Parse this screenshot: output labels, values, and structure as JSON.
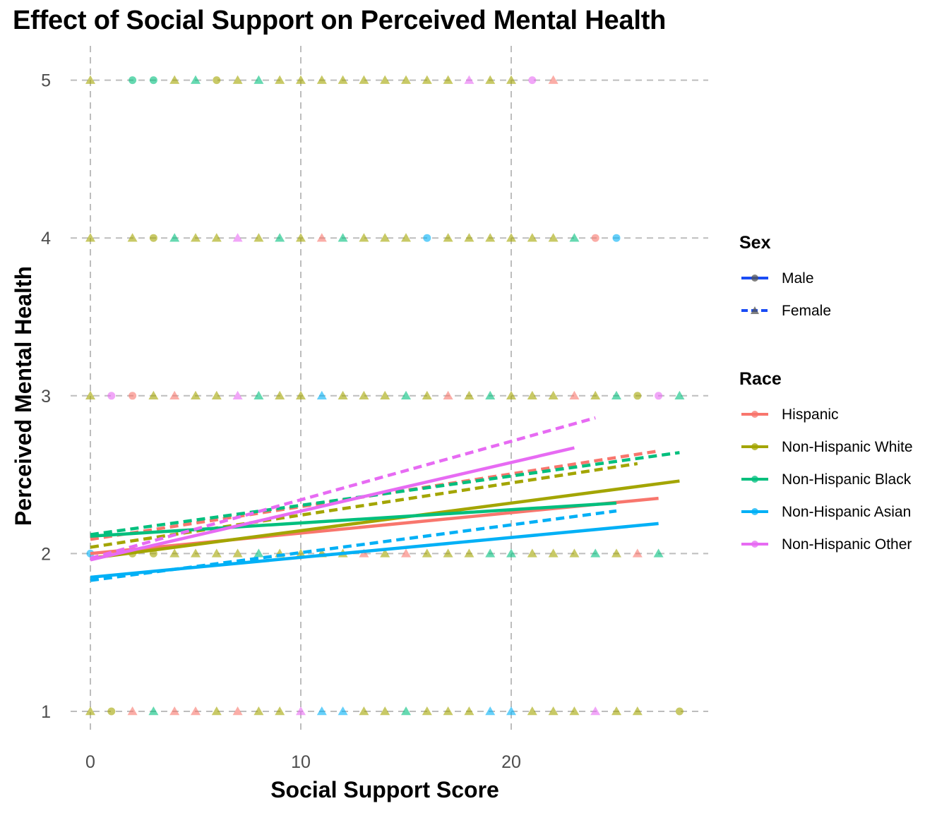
{
  "chart_data": {
    "type": "scatter",
    "title": "Effect of Social Support on Perceived Mental Health",
    "xlabel": "Social Support Score",
    "ylabel": "Perceived Mental Health",
    "xlim": [
      0,
      29
    ],
    "ylim": [
      1,
      5
    ],
    "x_ticks": [
      0,
      10,
      20
    ],
    "y_ticks": [
      1,
      2,
      3,
      4,
      5
    ],
    "grid": "dashed major gridlines",
    "legend_position": "right",
    "legends": {
      "sex": {
        "title": "Sex",
        "entries": [
          {
            "label": "Male",
            "linetype": "solid",
            "shape": "circle"
          },
          {
            "label": "Female",
            "linetype": "dashed",
            "shape": "triangle"
          }
        ]
      },
      "race": {
        "title": "Race",
        "entries": [
          {
            "label": "Hispanic",
            "color": "#F8766D"
          },
          {
            "label": "Non-Hispanic White",
            "color": "#A3A500"
          },
          {
            "label": "Non-Hispanic Black",
            "color": "#00BF7D"
          },
          {
            "label": "Non-Hispanic Asian",
            "color": "#00B0F6"
          },
          {
            "label": "Non-Hispanic Other",
            "color": "#E76BF3"
          }
        ]
      }
    },
    "trend_lines": [
      {
        "race": "Hispanic",
        "sex": "Male",
        "x": [
          0,
          27
        ],
        "y": [
          2.0,
          2.35
        ]
      },
      {
        "race": "Hispanic",
        "sex": "Female",
        "x": [
          0,
          27
        ],
        "y": [
          2.09,
          2.65
        ]
      },
      {
        "race": "Non-Hispanic White",
        "sex": "Male",
        "x": [
          0,
          28
        ],
        "y": [
          1.97,
          2.46
        ]
      },
      {
        "race": "Non-Hispanic White",
        "sex": "Female",
        "x": [
          0,
          26
        ],
        "y": [
          2.04,
          2.57
        ]
      },
      {
        "race": "Non-Hispanic Black",
        "sex": "Male",
        "x": [
          0,
          25
        ],
        "y": [
          2.11,
          2.32
        ]
      },
      {
        "race": "Non-Hispanic Black",
        "sex": "Female",
        "x": [
          0,
          28
        ],
        "y": [
          2.12,
          2.64
        ]
      },
      {
        "race": "Non-Hispanic Asian",
        "sex": "Male",
        "x": [
          0,
          27
        ],
        "y": [
          1.85,
          2.19
        ]
      },
      {
        "race": "Non-Hispanic Asian",
        "sex": "Female",
        "x": [
          0,
          25
        ],
        "y": [
          1.83,
          2.27
        ]
      },
      {
        "race": "Non-Hispanic Other",
        "sex": "Male",
        "x": [
          0,
          23
        ],
        "y": [
          1.96,
          2.67
        ]
      },
      {
        "race": "Non-Hispanic Other",
        "sex": "Female",
        "x": [
          0,
          24
        ],
        "y": [
          1.97,
          2.86
        ]
      }
    ],
    "points": [
      {
        "y": 5,
        "marks": [
          [
            0,
            "t",
            "#A3A500"
          ],
          [
            2,
            "c",
            "#00BF7D"
          ],
          [
            3,
            "c",
            "#00BF7D"
          ],
          [
            4,
            "t",
            "#A3A500"
          ],
          [
            5,
            "t",
            "#00BF7D"
          ],
          [
            6,
            "c",
            "#A3A500"
          ],
          [
            7,
            "t",
            "#A3A500"
          ],
          [
            8,
            "t",
            "#00BF7D"
          ],
          [
            9,
            "t",
            "#A3A500"
          ],
          [
            10,
            "t",
            "#A3A500"
          ],
          [
            11,
            "t",
            "#A3A500"
          ],
          [
            12,
            "t",
            "#A3A500"
          ],
          [
            13,
            "t",
            "#A3A500"
          ],
          [
            14,
            "t",
            "#A3A500"
          ],
          [
            15,
            "t",
            "#A3A500"
          ],
          [
            16,
            "t",
            "#A3A500"
          ],
          [
            17,
            "t",
            "#A3A500"
          ],
          [
            18,
            "t",
            "#E76BF3"
          ],
          [
            19,
            "t",
            "#A3A500"
          ],
          [
            20,
            "t",
            "#A3A500"
          ],
          [
            21,
            "c",
            "#E76BF3"
          ],
          [
            22,
            "t",
            "#F8766D"
          ]
        ]
      },
      {
        "y": 4,
        "marks": [
          [
            0,
            "t",
            "#A3A500"
          ],
          [
            2,
            "t",
            "#A3A500"
          ],
          [
            3,
            "c",
            "#A3A500"
          ],
          [
            4,
            "t",
            "#00BF7D"
          ],
          [
            5,
            "t",
            "#A3A500"
          ],
          [
            6,
            "t",
            "#A3A500"
          ],
          [
            7,
            "t",
            "#E76BF3"
          ],
          [
            8,
            "t",
            "#A3A500"
          ],
          [
            9,
            "t",
            "#00BF7D"
          ],
          [
            10,
            "t",
            "#A3A500"
          ],
          [
            11,
            "t",
            "#F8766D"
          ],
          [
            12,
            "t",
            "#00BF7D"
          ],
          [
            13,
            "t",
            "#A3A500"
          ],
          [
            14,
            "t",
            "#A3A500"
          ],
          [
            15,
            "t",
            "#A3A500"
          ],
          [
            16,
            "c",
            "#00B0F6"
          ],
          [
            17,
            "t",
            "#A3A500"
          ],
          [
            18,
            "t",
            "#A3A500"
          ],
          [
            19,
            "t",
            "#A3A500"
          ],
          [
            20,
            "t",
            "#A3A500"
          ],
          [
            21,
            "t",
            "#A3A500"
          ],
          [
            22,
            "t",
            "#A3A500"
          ],
          [
            23,
            "t",
            "#00BF7D"
          ],
          [
            24,
            "c",
            "#F8766D"
          ],
          [
            25,
            "c",
            "#00B0F6"
          ]
        ]
      },
      {
        "y": 3,
        "marks": [
          [
            0,
            "t",
            "#A3A500"
          ],
          [
            1,
            "c",
            "#E76BF3"
          ],
          [
            2,
            "c",
            "#F8766D"
          ],
          [
            3,
            "t",
            "#A3A500"
          ],
          [
            4,
            "t",
            "#F8766D"
          ],
          [
            5,
            "t",
            "#A3A500"
          ],
          [
            6,
            "t",
            "#A3A500"
          ],
          [
            7,
            "t",
            "#E76BF3"
          ],
          [
            8,
            "t",
            "#00BF7D"
          ],
          [
            9,
            "t",
            "#A3A500"
          ],
          [
            10,
            "t",
            "#A3A500"
          ],
          [
            11,
            "t",
            "#00B0F6"
          ],
          [
            12,
            "t",
            "#A3A500"
          ],
          [
            13,
            "t",
            "#A3A500"
          ],
          [
            14,
            "t",
            "#A3A500"
          ],
          [
            15,
            "t",
            "#00BF7D"
          ],
          [
            16,
            "t",
            "#A3A500"
          ],
          [
            17,
            "t",
            "#F8766D"
          ],
          [
            18,
            "t",
            "#A3A500"
          ],
          [
            19,
            "t",
            "#00BF7D"
          ],
          [
            20,
            "t",
            "#A3A500"
          ],
          [
            21,
            "t",
            "#A3A500"
          ],
          [
            22,
            "t",
            "#A3A500"
          ],
          [
            23,
            "t",
            "#F8766D"
          ],
          [
            24,
            "t",
            "#A3A500"
          ],
          [
            25,
            "t",
            "#00BF7D"
          ],
          [
            26,
            "c",
            "#A3A500"
          ],
          [
            27,
            "c",
            "#E76BF3"
          ],
          [
            28,
            "t",
            "#00BF7D"
          ]
        ]
      },
      {
        "y": 2,
        "marks": [
          [
            0,
            "c",
            "#00B0F6"
          ],
          [
            2,
            "c",
            "#A3A500"
          ],
          [
            3,
            "c",
            "#A3A500"
          ],
          [
            4,
            "t",
            "#A3A500"
          ],
          [
            5,
            "t",
            "#A3A500"
          ],
          [
            6,
            "t",
            "#A3A500"
          ],
          [
            7,
            "t",
            "#A3A500"
          ],
          [
            8,
            "t",
            "#00BF7D"
          ],
          [
            9,
            "t",
            "#A3A500"
          ],
          [
            10,
            "t",
            "#A3A500"
          ],
          [
            11,
            "t",
            "#A3A500"
          ],
          [
            12,
            "t",
            "#A3A500"
          ],
          [
            13,
            "t",
            "#F8766D"
          ],
          [
            14,
            "t",
            "#A3A500"
          ],
          [
            15,
            "t",
            "#F8766D"
          ],
          [
            16,
            "t",
            "#A3A500"
          ],
          [
            17,
            "t",
            "#A3A500"
          ],
          [
            18,
            "t",
            "#A3A500"
          ],
          [
            19,
            "t",
            "#00BF7D"
          ],
          [
            20,
            "t",
            "#00BF7D"
          ],
          [
            21,
            "t",
            "#A3A500"
          ],
          [
            22,
            "t",
            "#A3A500"
          ],
          [
            23,
            "t",
            "#A3A500"
          ],
          [
            24,
            "t",
            "#00BF7D"
          ],
          [
            25,
            "t",
            "#A3A500"
          ],
          [
            26,
            "t",
            "#F8766D"
          ],
          [
            27,
            "t",
            "#00BF7D"
          ]
        ]
      },
      {
        "y": 1,
        "marks": [
          [
            0,
            "t",
            "#A3A500"
          ],
          [
            1,
            "c",
            "#A3A500"
          ],
          [
            2,
            "t",
            "#F8766D"
          ],
          [
            3,
            "t",
            "#00BF7D"
          ],
          [
            4,
            "t",
            "#F8766D"
          ],
          [
            5,
            "t",
            "#F8766D"
          ],
          [
            6,
            "t",
            "#A3A500"
          ],
          [
            7,
            "t",
            "#F8766D"
          ],
          [
            8,
            "t",
            "#A3A500"
          ],
          [
            9,
            "t",
            "#A3A500"
          ],
          [
            10,
            "t",
            "#E76BF3"
          ],
          [
            11,
            "t",
            "#00B0F6"
          ],
          [
            12,
            "t",
            "#00B0F6"
          ],
          [
            13,
            "t",
            "#A3A500"
          ],
          [
            14,
            "t",
            "#A3A500"
          ],
          [
            15,
            "t",
            "#00BF7D"
          ],
          [
            16,
            "t",
            "#A3A500"
          ],
          [
            17,
            "t",
            "#A3A500"
          ],
          [
            18,
            "t",
            "#A3A500"
          ],
          [
            19,
            "t",
            "#00B0F6"
          ],
          [
            20,
            "t",
            "#00B0F6"
          ],
          [
            21,
            "t",
            "#A3A500"
          ],
          [
            22,
            "t",
            "#A3A500"
          ],
          [
            23,
            "t",
            "#A3A500"
          ],
          [
            24,
            "t",
            "#E76BF3"
          ],
          [
            25,
            "t",
            "#A3A500"
          ],
          [
            26,
            "t",
            "#A3A500"
          ],
          [
            28,
            "c",
            "#A3A500"
          ]
        ]
      }
    ]
  }
}
